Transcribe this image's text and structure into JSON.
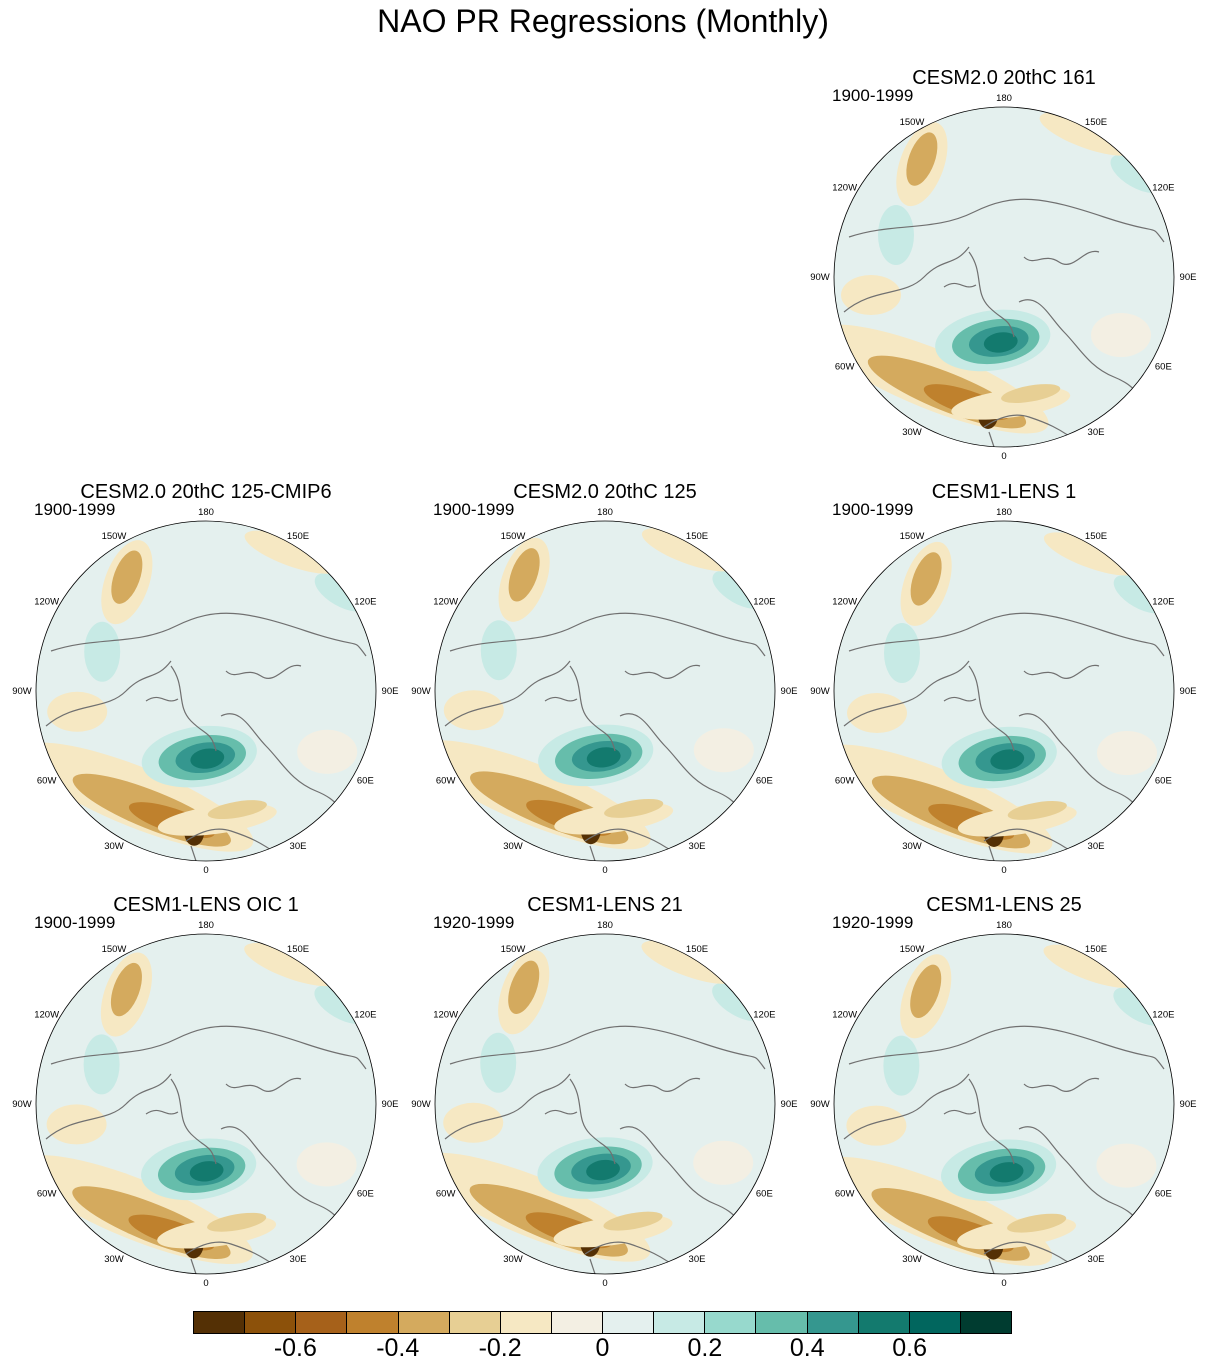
{
  "title": "NAO PR Regressions (Monthly)",
  "panels": [
    {
      "title": "CESM2.0 20thC 161",
      "period": "1900-1999"
    },
    {
      "title": "CESM2.0 20thC 125-CMIP6",
      "period": "1900-1999"
    },
    {
      "title": "CESM2.0 20thC 125",
      "period": "1900-1999"
    },
    {
      "title": "CESM1-LENS 1",
      "period": "1900-1999"
    },
    {
      "title": "CESM1-LENS OIC 1",
      "period": "1900-1999"
    },
    {
      "title": "CESM1-LENS 21",
      "period": "1920-1999"
    },
    {
      "title": "CESM1-LENS 25",
      "period": "1920-1999"
    }
  ],
  "longitude_labels": [
    "180",
    "150E",
    "120E",
    "90E",
    "60E",
    "30E",
    "0",
    "30W",
    "60W",
    "90W",
    "120W",
    "150W"
  ],
  "colorbar": {
    "colors": [
      "#543005",
      "#8c510a",
      "#a6611a",
      "#bf812d",
      "#d4aa5e",
      "#e7cf94",
      "#f6e8c3",
      "#f3efe3",
      "#e4f0ee",
      "#c7eae5",
      "#97d9cd",
      "#66bdab",
      "#35978f",
      "#137a6e",
      "#01665e",
      "#003c30"
    ],
    "tick_labels": [
      "-0.6",
      "-0.4",
      "-0.2",
      "0",
      "0.2",
      "0.4",
      "0.6"
    ],
    "tick_values": [
      -0.6,
      -0.4,
      -0.2,
      0,
      0.2,
      0.4,
      0.6
    ],
    "range": [
      -0.8,
      0.8
    ],
    "step": 0.1
  },
  "map_colors": {
    "ocean": "#e4f0ee",
    "coast": "#707070",
    "border": "#000000"
  }
}
